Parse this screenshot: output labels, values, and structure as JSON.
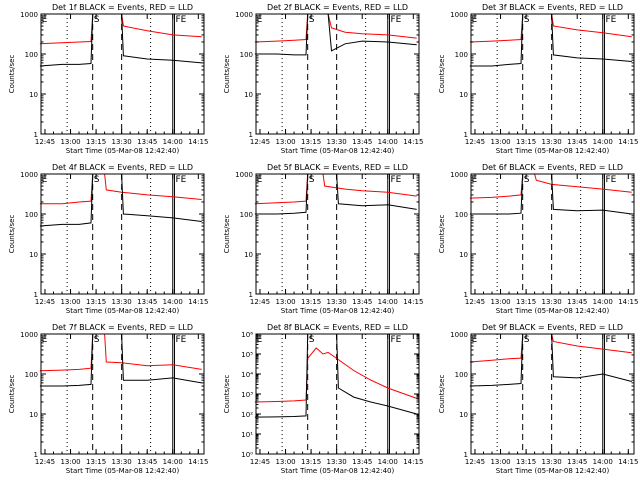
{
  "figure": {
    "xlabel": "Start Time (05-Mar-08 12:42:40)",
    "ylabel": "Counts/sec",
    "x_ticks": [
      "12:45",
      "13:00",
      "13:15",
      "13:30",
      "13:45",
      "14:00",
      "14:15"
    ],
    "colors": {
      "events": "#000000",
      "lld": "#ff0000"
    }
  },
  "chart_data": [
    {
      "type": "line",
      "title": "Det 1f BLACK = Events, RED = LLD",
      "x_ticks": [
        "12:45",
        "13:00",
        "13:15",
        "13:30",
        "13:45",
        "14:00",
        "14:15"
      ],
      "y_ticks": [
        "1",
        "10",
        "100",
        "1000"
      ],
      "ylim": [
        1,
        1000
      ],
      "yscale": "log",
      "xlabel": "Start Time (05-Mar-08 12:42:40)",
      "ylabel": "Counts/sec",
      "markers": [
        "E",
        "S",
        "FE"
      ],
      "series": [
        {
          "name": "LLD",
          "color": "#ff0000",
          "x": [
            "12:42",
            "12:55",
            "13:05",
            "13:12",
            "13:13",
            "13:30",
            "13:31",
            "13:45",
            "14:00",
            "14:17"
          ],
          "values": [
            180,
            190,
            200,
            205,
            1000,
            1000,
            500,
            380,
            300,
            270
          ]
        },
        {
          "name": "Events",
          "color": "#000000",
          "x": [
            "12:42",
            "12:55",
            "13:05",
            "13:12",
            "13:13",
            "13:30",
            "13:31",
            "13:45",
            "14:00",
            "14:17"
          ],
          "values": [
            50,
            55,
            55,
            58,
            1000,
            1000,
            90,
            75,
            70,
            60
          ]
        }
      ]
    },
    {
      "type": "line",
      "title": "Det 2f BLACK = Events, RED = LLD",
      "x_ticks": [
        "12:45",
        "13:00",
        "13:15",
        "13:30",
        "13:45",
        "14:00",
        "14:15"
      ],
      "y_ticks": [
        "1",
        "10",
        "100",
        "1000"
      ],
      "ylim": [
        1,
        1000
      ],
      "yscale": "log",
      "xlabel": "Start Time (05-Mar-08 12:42:40)",
      "ylabel": "Counts/sec",
      "markers": [
        "E",
        "S",
        "FE"
      ],
      "series": [
        {
          "name": "LLD",
          "color": "#ff0000",
          "x": [
            "12:42",
            "12:55",
            "13:05",
            "13:12",
            "13:13",
            "13:25",
            "13:27",
            "13:35",
            "13:45",
            "14:00",
            "14:17"
          ],
          "values": [
            200,
            210,
            220,
            230,
            1000,
            1000,
            450,
            350,
            320,
            300,
            250
          ]
        },
        {
          "name": "Events",
          "color": "#000000",
          "x": [
            "12:42",
            "12:55",
            "13:05",
            "13:12",
            "13:13",
            "13:25",
            "13:27",
            "13:35",
            "13:45",
            "14:00",
            "14:17"
          ],
          "values": [
            100,
            100,
            95,
            95,
            1000,
            1000,
            120,
            180,
            210,
            200,
            170
          ]
        }
      ]
    },
    {
      "type": "line",
      "title": "Det 3f BLACK = Events, RED = LLD",
      "x_ticks": [
        "12:45",
        "13:00",
        "13:15",
        "13:30",
        "13:45",
        "14:00",
        "14:15"
      ],
      "y_ticks": [
        "1",
        "10",
        "100",
        "1000"
      ],
      "ylim": [
        1,
        1000
      ],
      "yscale": "log",
      "xlabel": "Start Time (05-Mar-08 12:42:40)",
      "ylabel": "Counts/sec",
      "markers": [
        "E",
        "S",
        "FE"
      ],
      "series": [
        {
          "name": "LLD",
          "color": "#ff0000",
          "x": [
            "12:42",
            "12:55",
            "13:05",
            "13:12",
            "13:13",
            "13:30",
            "13:31",
            "13:45",
            "14:00",
            "14:17"
          ],
          "values": [
            200,
            210,
            220,
            230,
            1000,
            1000,
            500,
            400,
            340,
            270
          ]
        },
        {
          "name": "Events",
          "color": "#000000",
          "x": [
            "12:42",
            "12:55",
            "13:05",
            "13:12",
            "13:13",
            "13:30",
            "13:31",
            "13:45",
            "14:00",
            "14:17"
          ],
          "values": [
            50,
            50,
            55,
            58,
            1000,
            1000,
            95,
            80,
            75,
            65
          ]
        }
      ]
    },
    {
      "type": "line",
      "title": "Det 4f BLACK = Events, RED = LLD",
      "x_ticks": [
        "12:45",
        "13:00",
        "13:15",
        "13:30",
        "13:45",
        "14:00",
        "14:15"
      ],
      "y_ticks": [
        "1",
        "10",
        "100",
        "1000"
      ],
      "ylim": [
        1,
        1000
      ],
      "yscale": "log",
      "xlabel": "Start Time (05-Mar-08 12:42:40)",
      "ylabel": "Counts/sec",
      "markers": [
        "E",
        "S",
        "FE"
      ],
      "series": [
        {
          "name": "LLD",
          "color": "#ff0000",
          "x": [
            "12:42",
            "12:55",
            "13:05",
            "13:12",
            "13:13",
            "13:20",
            "13:21",
            "13:30",
            "13:45",
            "14:00",
            "14:17"
          ],
          "values": [
            180,
            180,
            200,
            210,
            1000,
            1000,
            400,
            350,
            300,
            270,
            230
          ]
        },
        {
          "name": "Events",
          "color": "#000000",
          "x": [
            "12:42",
            "12:55",
            "13:05",
            "13:12",
            "13:13",
            "13:30",
            "13:31",
            "13:45",
            "14:00",
            "14:17"
          ],
          "values": [
            50,
            55,
            55,
            60,
            1000,
            1000,
            100,
            90,
            80,
            65
          ]
        }
      ]
    },
    {
      "type": "line",
      "title": "Det 5f BLACK = Events, RED = LLD",
      "x_ticks": [
        "12:45",
        "13:00",
        "13:15",
        "13:30",
        "13:45",
        "14:00",
        "14:15"
      ],
      "y_ticks": [
        "1",
        "10",
        "100",
        "1000"
      ],
      "ylim": [
        1,
        1000
      ],
      "yscale": "log",
      "xlabel": "Start Time (05-Mar-08 12:42:40)",
      "ylabel": "Counts/sec",
      "markers": [
        "E",
        "S",
        "FE"
      ],
      "series": [
        {
          "name": "LLD",
          "color": "#ff0000",
          "x": [
            "12:42",
            "12:55",
            "13:05",
            "13:12",
            "13:13",
            "13:22",
            "13:23",
            "13:35",
            "13:45",
            "14:00",
            "14:17"
          ],
          "values": [
            180,
            190,
            200,
            210,
            1000,
            1000,
            500,
            420,
            380,
            350,
            280
          ]
        },
        {
          "name": "Events",
          "color": "#000000",
          "x": [
            "12:42",
            "12:55",
            "13:05",
            "13:12",
            "13:13",
            "13:30",
            "13:31",
            "13:45",
            "14:00",
            "14:17"
          ],
          "values": [
            100,
            100,
            105,
            110,
            1000,
            1000,
            180,
            160,
            170,
            130
          ]
        }
      ]
    },
    {
      "type": "line",
      "title": "Det 6f BLACK = Events, RED = LLD",
      "x_ticks": [
        "12:45",
        "13:00",
        "13:15",
        "13:30",
        "13:45",
        "14:00",
        "14:15"
      ],
      "y_ticks": [
        "1",
        "10",
        "100",
        "1000"
      ],
      "ylim": [
        1,
        1000
      ],
      "yscale": "log",
      "xlabel": "Start Time (05-Mar-08 12:42:40)",
      "ylabel": "Counts/sec",
      "markers": [
        "E",
        "S",
        "FE"
      ],
      "series": [
        {
          "name": "LLD",
          "color": "#ff0000",
          "x": [
            "12:42",
            "12:55",
            "13:05",
            "13:12",
            "13:13",
            "13:20",
            "13:21",
            "13:30",
            "13:45",
            "14:00",
            "14:17"
          ],
          "values": [
            250,
            260,
            280,
            300,
            1000,
            1000,
            700,
            550,
            480,
            420,
            350
          ]
        },
        {
          "name": "Events",
          "color": "#000000",
          "x": [
            "12:42",
            "12:55",
            "13:05",
            "13:12",
            "13:13",
            "13:30",
            "13:31",
            "13:45",
            "14:00",
            "14:17"
          ],
          "values": [
            100,
            100,
            100,
            105,
            1000,
            1000,
            130,
            120,
            125,
            100
          ]
        }
      ]
    },
    {
      "type": "line",
      "title": "Det 7f BLACK = Events, RED = LLD",
      "x_ticks": [
        "12:45",
        "13:00",
        "13:15",
        "13:30",
        "13:45",
        "14:00",
        "14:15"
      ],
      "y_ticks": [
        "1",
        "10",
        "100",
        "1000"
      ],
      "ylim": [
        1,
        1000
      ],
      "yscale": "log",
      "xlabel": "Start Time (05-Mar-08 12:42:40)",
      "ylabel": "Counts/sec",
      "markers": [
        "E",
        "S",
        "FE"
      ],
      "series": [
        {
          "name": "LLD",
          "color": "#ff0000",
          "x": [
            "12:42",
            "12:55",
            "13:05",
            "13:12",
            "13:13",
            "13:20",
            "13:21",
            "13:30",
            "13:45",
            "14:00",
            "14:17"
          ],
          "values": [
            120,
            125,
            130,
            140,
            1000,
            1000,
            200,
            190,
            160,
            170,
            130
          ]
        },
        {
          "name": "Events",
          "color": "#000000",
          "x": [
            "12:42",
            "12:55",
            "13:05",
            "13:12",
            "13:13",
            "13:30",
            "13:31",
            "13:45",
            "14:00",
            "14:17"
          ],
          "values": [
            50,
            50,
            52,
            55,
            1000,
            1000,
            70,
            70,
            80,
            60
          ]
        }
      ]
    },
    {
      "type": "line",
      "title": "Det 8f BLACK = Events, RED = LLD",
      "x_ticks": [
        "12:45",
        "13:00",
        "13:15",
        "13:30",
        "13:45",
        "14:00",
        "14:15"
      ],
      "y_ticks": [
        "10⁰",
        "10¹",
        "10²",
        "10³",
        "10⁴",
        "10⁵",
        "10⁶"
      ],
      "ylim": [
        1,
        1000000
      ],
      "yscale": "log",
      "xlabel": "Start Time (05-Mar-08 12:42:40)",
      "ylabel": "Counts/sec",
      "markers": [
        "E",
        "S",
        "FE"
      ],
      "series": [
        {
          "name": "LLD",
          "color": "#ff0000",
          "x": [
            "12:42",
            "12:55",
            "13:05",
            "13:12",
            "13:13",
            "13:18",
            "13:22",
            "13:25",
            "13:30",
            "13:40",
            "13:50",
            "14:00",
            "14:17"
          ],
          "values": [
            400,
            420,
            450,
            500,
            60000,
            200000,
            100000,
            120000,
            60000,
            15000,
            5000,
            2000,
            600
          ]
        },
        {
          "name": "Events",
          "color": "#000000",
          "x": [
            "12:42",
            "12:55",
            "13:05",
            "13:12",
            "13:13",
            "13:30",
            "13:31",
            "13:40",
            "13:50",
            "14:00",
            "14:17"
          ],
          "values": [
            70,
            72,
            75,
            80,
            1000000,
            1000000,
            2000,
            700,
            400,
            250,
            100
          ]
        }
      ]
    },
    {
      "type": "line",
      "title": "Det 9f BLACK = Events, RED = LLD",
      "x_ticks": [
        "12:45",
        "13:00",
        "13:15",
        "13:30",
        "13:45",
        "14:00",
        "14:15"
      ],
      "y_ticks": [
        "1",
        "10",
        "100",
        "1000"
      ],
      "ylim": [
        1,
        1000
      ],
      "yscale": "log",
      "xlabel": "Start Time (05-Mar-08 12:42:40)",
      "ylabel": "Counts/sec",
      "markers": [
        "E",
        "S",
        "FE"
      ],
      "series": [
        {
          "name": "LLD",
          "color": "#ff0000",
          "x": [
            "12:42",
            "12:55",
            "13:05",
            "13:12",
            "13:13",
            "13:30",
            "13:31",
            "13:45",
            "14:00",
            "14:17"
          ],
          "values": [
            200,
            220,
            240,
            250,
            1000,
            1000,
            650,
            500,
            420,
            340
          ]
        },
        {
          "name": "Events",
          "color": "#000000",
          "x": [
            "12:42",
            "12:55",
            "13:05",
            "13:12",
            "13:13",
            "13:30",
            "13:31",
            "13:45",
            "14:00",
            "14:17"
          ],
          "values": [
            50,
            52,
            55,
            58,
            1000,
            1000,
            85,
            80,
            100,
            65
          ]
        }
      ]
    }
  ]
}
